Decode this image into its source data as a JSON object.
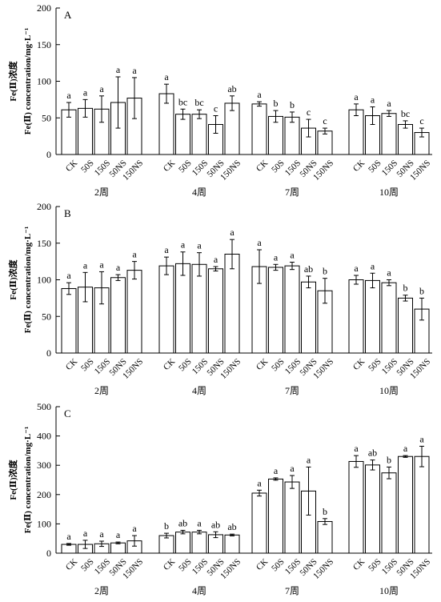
{
  "chart_data": [
    {
      "panel": "A",
      "type": "bar",
      "ylabel_cn": "Fe(Ⅱ)浓度",
      "ylabel_en": "Fe(Ⅱ) concentration/mg·L⁻¹",
      "ylim": [
        0,
        200
      ],
      "yticks": [
        "0",
        "50",
        "100",
        "150",
        "200"
      ],
      "ytick_values": [
        0,
        50,
        100,
        150,
        200
      ],
      "treatments": [
        "CK",
        "50S",
        "150S",
        "50NS",
        "150NS"
      ],
      "groups": [
        {
          "label": "2周",
          "values": [
            61,
            63,
            62,
            71,
            77
          ],
          "errors": [
            10,
            12,
            18,
            35,
            28
          ],
          "letters": [
            "a",
            "a",
            "a",
            "a",
            "a"
          ]
        },
        {
          "label": "4周",
          "values": [
            83,
            55,
            55,
            41,
            70
          ],
          "errors": [
            13,
            7,
            6,
            12,
            10
          ],
          "letters": [
            "a",
            "bc",
            "bc",
            "c",
            "ab"
          ]
        },
        {
          "label": "7周",
          "values": [
            69,
            52,
            51,
            36,
            32
          ],
          "errors": [
            3,
            8,
            7,
            12,
            4
          ],
          "letters": [
            "a",
            "b",
            "b",
            "c",
            "c"
          ]
        },
        {
          "label": "10周",
          "values": [
            61,
            53,
            56,
            41,
            30
          ],
          "errors": [
            8,
            12,
            4,
            5,
            6
          ],
          "letters": [
            "a",
            "a",
            "a",
            "bc",
            "c"
          ]
        }
      ]
    },
    {
      "panel": "B",
      "type": "bar",
      "ylabel_cn": "Fe(Ⅱ)浓度",
      "ylabel_en": "Fe(Ⅱ) concentration/mg·L⁻¹",
      "ylim": [
        0,
        200
      ],
      "yticks": [
        "0",
        "50",
        "100",
        "150",
        "200"
      ],
      "ytick_values": [
        0,
        50,
        100,
        150,
        200
      ],
      "treatments": [
        "CK",
        "50S",
        "150S",
        "50NS",
        "150NS"
      ],
      "groups": [
        {
          "label": "2周",
          "values": [
            88,
            90,
            89,
            103,
            113
          ],
          "errors": [
            8,
            20,
            22,
            4,
            12
          ],
          "letters": [
            "a",
            "a",
            "a",
            "a",
            "a"
          ]
        },
        {
          "label": "4周",
          "values": [
            119,
            122,
            121,
            115,
            135
          ],
          "errors": [
            12,
            16,
            16,
            3,
            20
          ],
          "letters": [
            "a",
            "a",
            "a",
            "a",
            "a"
          ]
        },
        {
          "label": "7周",
          "values": [
            118,
            117,
            119,
            97,
            85
          ],
          "errors": [
            23,
            4,
            5,
            8,
            17
          ],
          "letters": [
            "a",
            "a",
            "a",
            "ab",
            "b"
          ]
        },
        {
          "label": "10周",
          "values": [
            100,
            99,
            96,
            75,
            60
          ],
          "errors": [
            6,
            10,
            4,
            4,
            15
          ],
          "letters": [
            "a",
            "a",
            "a",
            "b",
            "b"
          ]
        }
      ]
    },
    {
      "panel": "C",
      "type": "bar",
      "ylabel_cn": "Fe(Ⅱ)浓度",
      "ylabel_en": "Fe(Ⅱ) concentration/mg·L⁻¹",
      "ylim": [
        0,
        500
      ],
      "yticks": [
        "0",
        "100",
        "200",
        "300",
        "400",
        "500"
      ],
      "ytick_values": [
        0,
        100,
        200,
        300,
        400,
        500
      ],
      "treatments": [
        "CK",
        "50S",
        "150S",
        "50NS",
        "150NS"
      ],
      "groups": [
        {
          "label": "2周",
          "values": [
            30,
            30,
            32,
            35,
            42
          ],
          "errors": [
            3,
            14,
            9,
            3,
            18
          ],
          "letters": [
            "a",
            "a",
            "a",
            "a",
            "a"
          ]
        },
        {
          "label": "4周",
          "values": [
            60,
            72,
            72,
            63,
            62
          ],
          "errors": [
            8,
            6,
            6,
            10,
            3
          ],
          "letters": [
            "b",
            "ab",
            "a",
            "ab",
            "ab"
          ]
        },
        {
          "label": "7周",
          "values": [
            205,
            253,
            243,
            212,
            108
          ],
          "errors": [
            10,
            4,
            22,
            82,
            10
          ],
          "letters": [
            "a",
            "a",
            "a",
            "a",
            "b"
          ]
        },
        {
          "label": "10周",
          "values": [
            313,
            301,
            274,
            330,
            330
          ],
          "errors": [
            20,
            17,
            20,
            3,
            35
          ],
          "letters": [
            "a",
            "ab",
            "b",
            "a",
            "a"
          ]
        }
      ]
    }
  ]
}
